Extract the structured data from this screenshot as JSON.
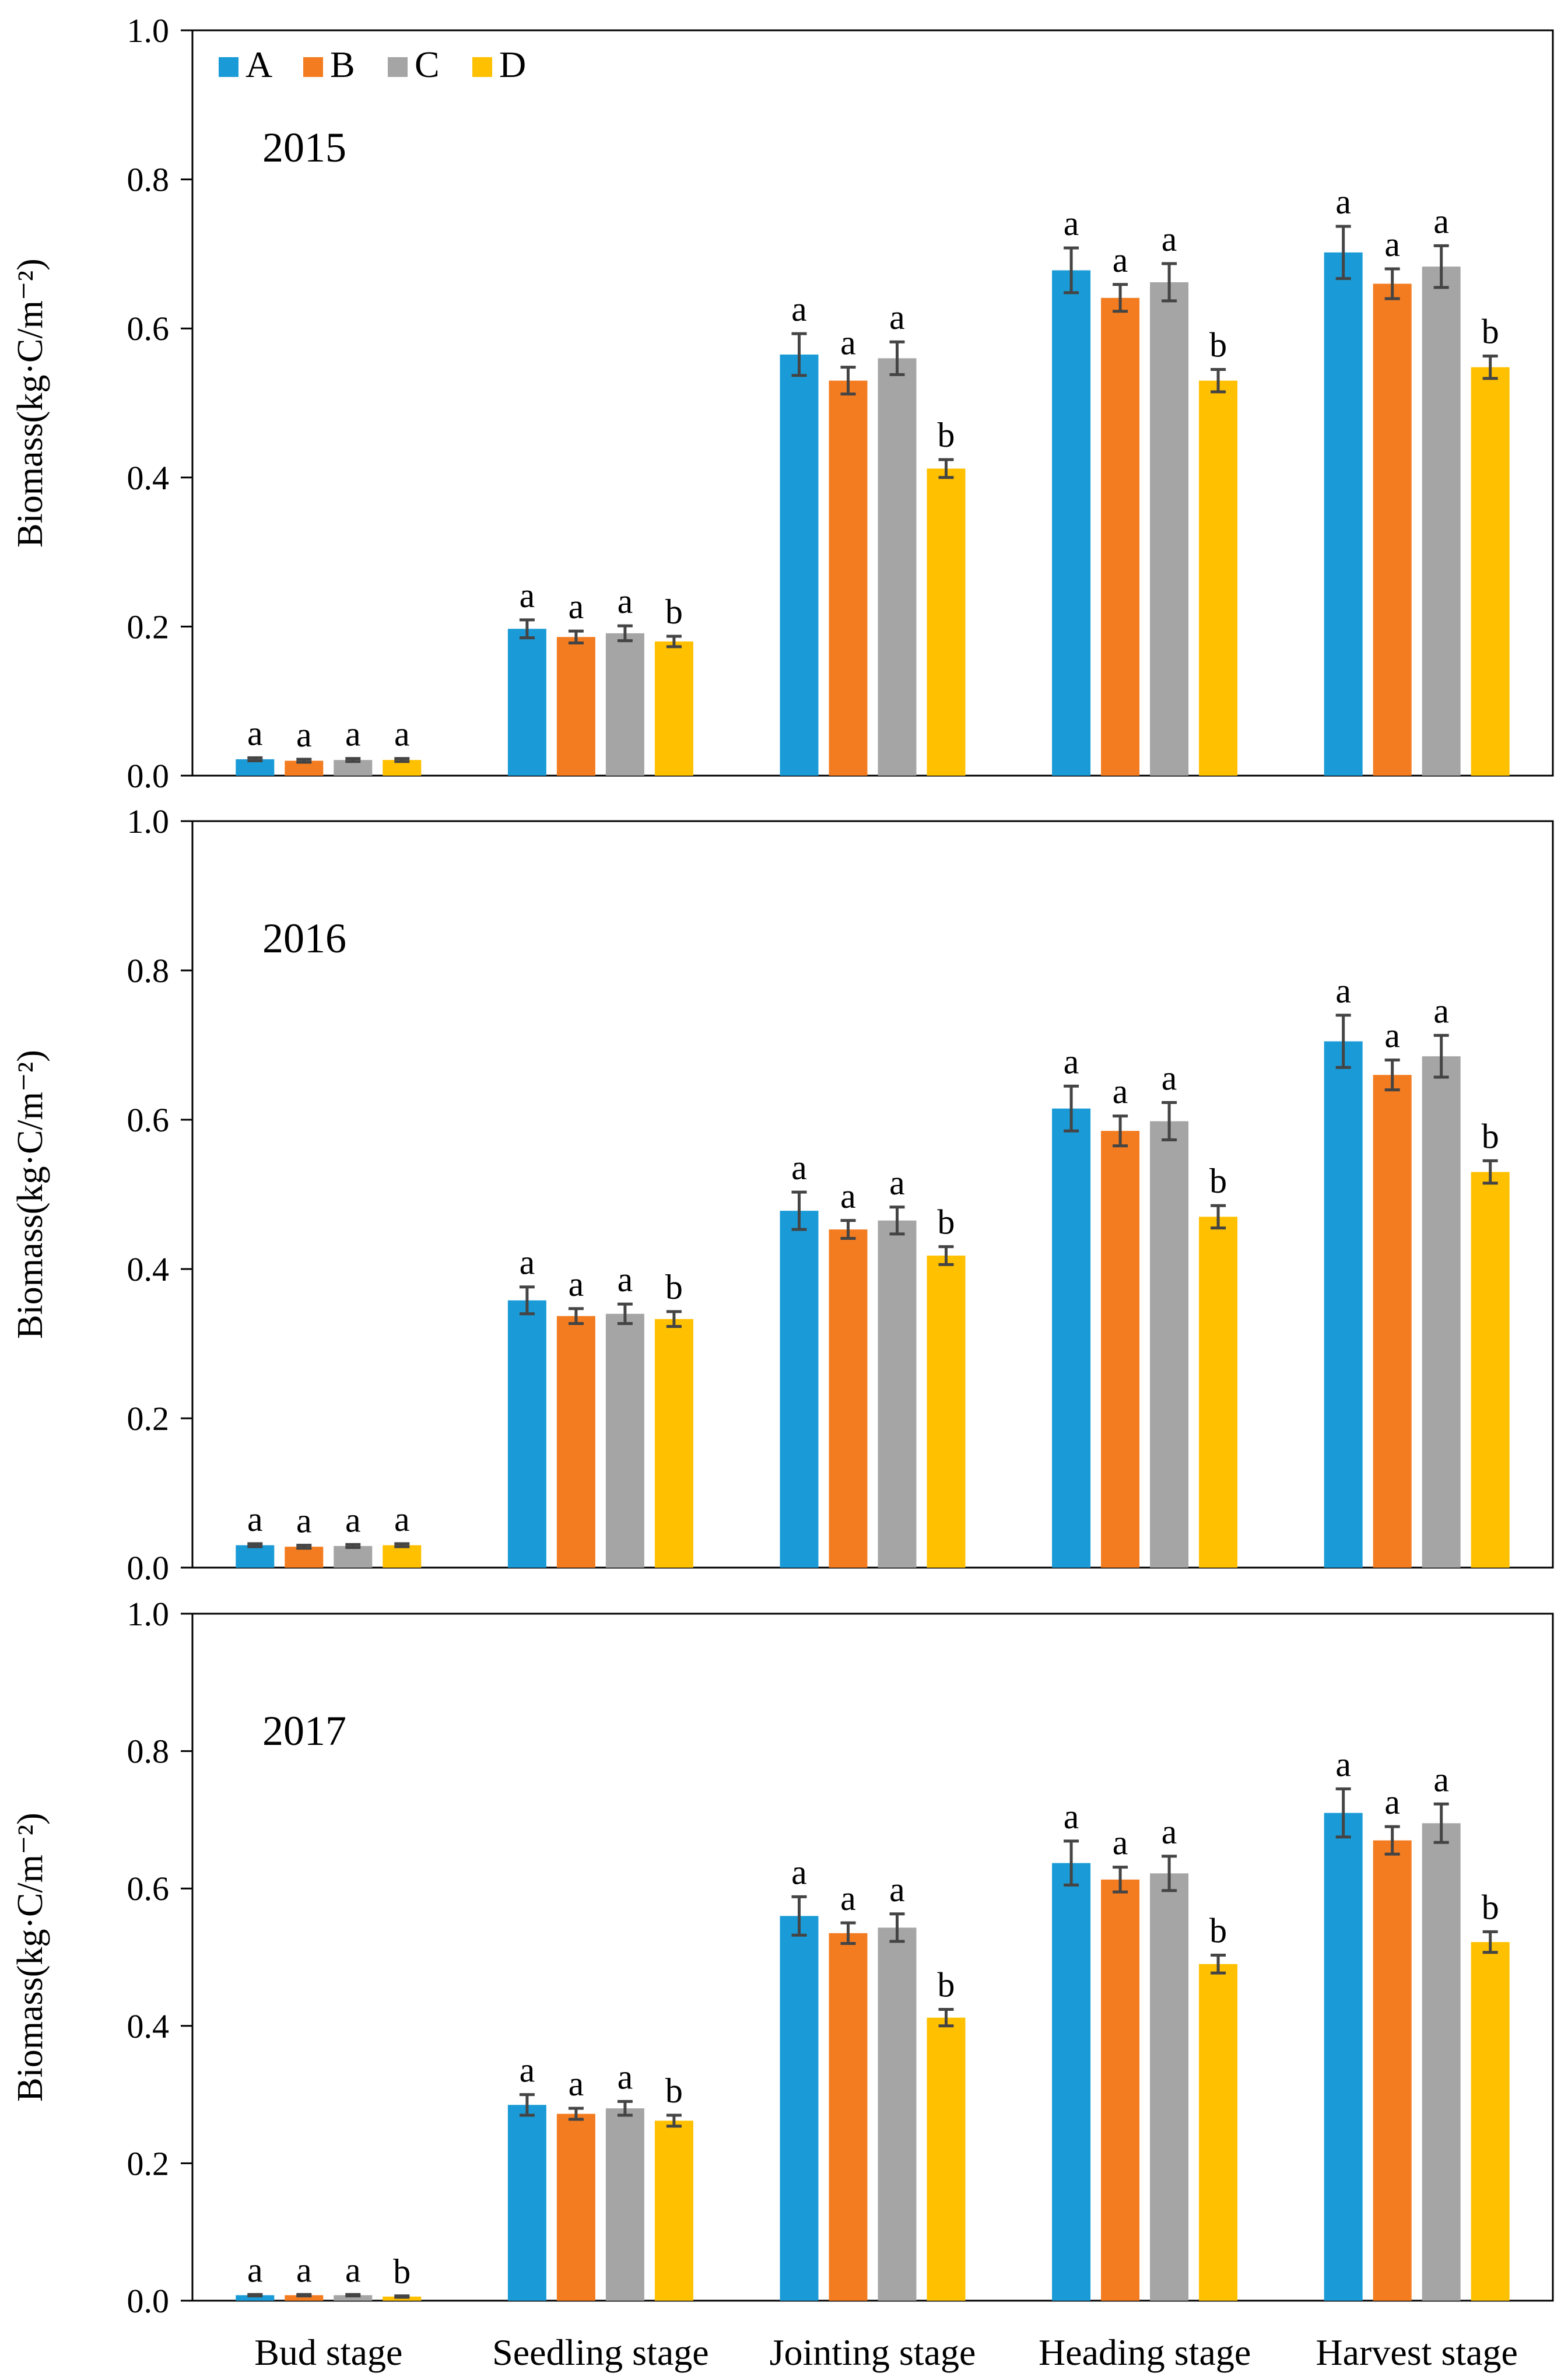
{
  "chart_data": {
    "type": "bar",
    "ylabel": "Biomass(kg·C/m⁻²)",
    "ylim": [
      0,
      1.0
    ],
    "yticks": [
      "0.0",
      "0.2",
      "0.4",
      "0.6",
      "0.8",
      "1.0"
    ],
    "categories": [
      "Bud stage",
      "Seedling stage",
      "Jointing stage",
      "Heading stage",
      "Harvest stage"
    ],
    "legend": {
      "position": "top-left",
      "items": [
        {
          "name": "A",
          "color": "#1a9bd7"
        },
        {
          "name": "B",
          "color": "#f37c20"
        },
        {
          "name": "C",
          "color": "#a5a5a5"
        },
        {
          "name": "D",
          "color": "#ffc000"
        }
      ]
    },
    "panels": [
      {
        "title": "2015",
        "series": [
          {
            "name": "A",
            "values": [
              0.022,
              0.197,
              0.565,
              0.678,
              0.702
            ],
            "errors": [
              0.002,
              0.012,
              0.028,
              0.03,
              0.035
            ]
          },
          {
            "name": "B",
            "values": [
              0.02,
              0.186,
              0.53,
              0.641,
              0.66
            ],
            "errors": [
              0.002,
              0.008,
              0.018,
              0.018,
              0.02
            ]
          },
          {
            "name": "C",
            "values": [
              0.021,
              0.191,
              0.56,
              0.662,
              0.683
            ],
            "errors": [
              0.002,
              0.01,
              0.022,
              0.025,
              0.028
            ]
          },
          {
            "name": "D",
            "values": [
              0.021,
              0.18,
              0.412,
              0.53,
              0.548
            ],
            "errors": [
              0.002,
              0.007,
              0.012,
              0.015,
              0.015
            ]
          }
        ],
        "labels": [
          [
            "a",
            "a",
            "a",
            "a"
          ],
          [
            "a",
            "a",
            "a",
            "b"
          ],
          [
            "a",
            "a",
            "a",
            "b"
          ],
          [
            "a",
            "a",
            "a",
            "b"
          ],
          [
            "a",
            "a",
            "a",
            "b"
          ]
        ]
      },
      {
        "title": "2016",
        "series": [
          {
            "name": "A",
            "values": [
              0.03,
              0.358,
              0.478,
              0.615,
              0.705
            ],
            "errors": [
              0.002,
              0.018,
              0.025,
              0.03,
              0.035
            ]
          },
          {
            "name": "B",
            "values": [
              0.028,
              0.337,
              0.453,
              0.585,
              0.66
            ],
            "errors": [
              0.002,
              0.01,
              0.012,
              0.02,
              0.02
            ]
          },
          {
            "name": "C",
            "values": [
              0.029,
              0.34,
              0.465,
              0.598,
              0.685
            ],
            "errors": [
              0.002,
              0.013,
              0.018,
              0.025,
              0.028
            ]
          },
          {
            "name": "D",
            "values": [
              0.03,
              0.333,
              0.418,
              0.47,
              0.53
            ],
            "errors": [
              0.002,
              0.01,
              0.012,
              0.015,
              0.015
            ]
          }
        ],
        "labels": [
          [
            "a",
            "a",
            "a",
            "a"
          ],
          [
            "a",
            "a",
            "a",
            "b"
          ],
          [
            "a",
            "a",
            "a",
            "b"
          ],
          [
            "a",
            "a",
            "a",
            "b"
          ],
          [
            "a",
            "a",
            "a",
            "b"
          ]
        ]
      },
      {
        "title": "2017",
        "series": [
          {
            "name": "A",
            "values": [
              0.008,
              0.285,
              0.56,
              0.637,
              0.71
            ],
            "errors": [
              0.001,
              0.015,
              0.028,
              0.032,
              0.035
            ]
          },
          {
            "name": "B",
            "values": [
              0.008,
              0.272,
              0.535,
              0.613,
              0.67
            ],
            "errors": [
              0.001,
              0.008,
              0.015,
              0.018,
              0.02
            ]
          },
          {
            "name": "C",
            "values": [
              0.008,
              0.28,
              0.543,
              0.622,
              0.695
            ],
            "errors": [
              0.001,
              0.01,
              0.02,
              0.025,
              0.028
            ]
          },
          {
            "name": "D",
            "values": [
              0.006,
              0.262,
              0.412,
              0.49,
              0.522
            ],
            "errors": [
              0.001,
              0.008,
              0.012,
              0.013,
              0.015
            ]
          }
        ],
        "labels": [
          [
            "a",
            "a",
            "a",
            "b"
          ],
          [
            "a",
            "a",
            "a",
            "b"
          ],
          [
            "a",
            "a",
            "a",
            "b"
          ],
          [
            "a",
            "a",
            "a",
            "b"
          ],
          [
            "a",
            "a",
            "a",
            "b"
          ]
        ]
      }
    ]
  }
}
